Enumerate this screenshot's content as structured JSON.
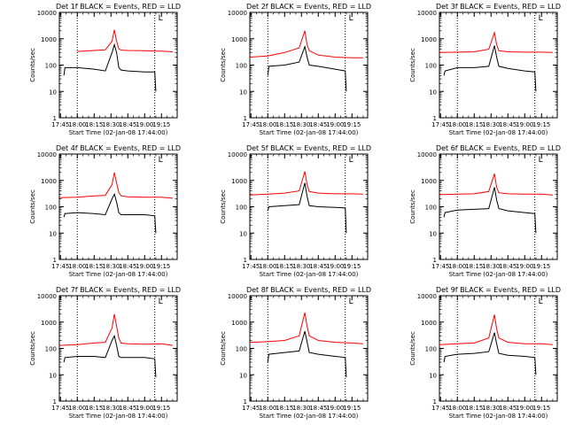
{
  "chart_data": [
    {
      "type": "line",
      "title": "Det 1f BLACK = Events, RED = LLD",
      "xlabel": "Start Time (02-Jan-08 17:44:00)",
      "ylabel": "Counts/sec",
      "yscale": "log",
      "ylim": [
        1,
        10000
      ],
      "y_ticks": [
        "1",
        "10",
        "100",
        "1000",
        "10000"
      ],
      "xlim": [
        "17:44",
        "19:29"
      ],
      "x_ticks": [
        "17:45",
        "18:00",
        "18:15",
        "18:30",
        "18:45",
        "19:00",
        "19:15"
      ],
      "vlines": [
        "18:00",
        "19:09"
      ],
      "marker": "L",
      "series": [
        {
          "name": "LLD",
          "color": "#ff0000",
          "x": [
            "18:00",
            "18:15",
            "18:25",
            "18:31",
            "18:33",
            "18:35",
            "18:37",
            "18:39",
            "18:45",
            "19:00",
            "19:09",
            "19:15",
            "19:25"
          ],
          "y": [
            330,
            360,
            380,
            800,
            2200,
            800,
            420,
            370,
            360,
            350,
            340,
            340,
            320
          ]
        },
        {
          "name": "Events",
          "color": "#000000",
          "x": [
            "17:48",
            "17:49",
            "18:00",
            "18:15",
            "18:25",
            "18:31",
            "18:33",
            "18:35",
            "18:37",
            "18:39",
            "18:45",
            "19:00",
            "19:09",
            "19:10"
          ],
          "y": [
            40,
            80,
            80,
            70,
            60,
            300,
            600,
            300,
            80,
            65,
            60,
            55,
            55,
            10
          ]
        }
      ]
    },
    {
      "type": "line",
      "title": "Det 2f BLACK = Events, RED = LLD",
      "xlabel": "Start Time (02-Jan-08 17:44:00)",
      "ylabel": "Counts/sec",
      "yscale": "log",
      "ylim": [
        1,
        10000
      ],
      "y_ticks": [
        "1",
        "10",
        "100",
        "1000",
        "10000"
      ],
      "xlim": [
        "17:44",
        "19:29"
      ],
      "x_ticks": [
        "17:45",
        "18:00",
        "18:15",
        "18:30",
        "18:45",
        "19:00",
        "19:15"
      ],
      "vlines": [
        "18:00",
        "19:09"
      ],
      "marker": "L",
      "series": [
        {
          "name": "LLD",
          "color": "#ff0000",
          "x": [
            "17:44",
            "18:00",
            "18:15",
            "18:28",
            "18:33",
            "18:35",
            "18:37",
            "18:45",
            "19:00",
            "19:15",
            "19:25"
          ],
          "y": [
            200,
            220,
            300,
            450,
            2000,
            600,
            350,
            240,
            200,
            190,
            190
          ]
        },
        {
          "name": "Events",
          "color": "#000000",
          "x": [
            "18:00",
            "18:01",
            "18:15",
            "18:28",
            "18:33",
            "18:35",
            "18:37",
            "18:45",
            "19:00",
            "19:09",
            "19:10"
          ],
          "y": [
            40,
            90,
            100,
            130,
            500,
            200,
            100,
            90,
            70,
            60,
            10
          ]
        }
      ]
    },
    {
      "type": "line",
      "title": "Det 3f BLACK = Events, RED = LLD",
      "xlabel": "Start Time (02-Jan-08 17:44:00)",
      "ylabel": "Counts/sec",
      "yscale": "log",
      "ylim": [
        1,
        10000
      ],
      "y_ticks": [
        "1",
        "10",
        "100",
        "1000",
        "10000"
      ],
      "xlim": [
        "17:44",
        "19:29"
      ],
      "x_ticks": [
        "17:45",
        "18:00",
        "18:15",
        "18:30",
        "18:45",
        "19:00",
        "19:15"
      ],
      "vlines": [
        "18:00",
        "19:09"
      ],
      "marker": "L",
      "series": [
        {
          "name": "LLD",
          "color": "#ff0000",
          "x": [
            "17:44",
            "18:00",
            "18:15",
            "18:28",
            "18:33",
            "18:35",
            "18:37",
            "18:45",
            "19:00",
            "19:15",
            "19:25"
          ],
          "y": [
            300,
            310,
            320,
            400,
            1700,
            600,
            350,
            320,
            310,
            310,
            300
          ]
        },
        {
          "name": "Events",
          "color": "#000000",
          "x": [
            "17:48",
            "17:49",
            "18:00",
            "18:15",
            "18:28",
            "18:33",
            "18:35",
            "18:37",
            "18:45",
            "19:00",
            "19:09",
            "19:10"
          ],
          "y": [
            40,
            60,
            80,
            80,
            90,
            550,
            200,
            90,
            75,
            60,
            55,
            10
          ]
        }
      ]
    },
    {
      "type": "line",
      "title": "Det 4f BLACK = Events, RED = LLD",
      "xlabel": "Start Time (02-Jan-08 17:44:00)",
      "ylabel": "Counts/sec",
      "yscale": "log",
      "ylim": [
        1,
        10000
      ],
      "y_ticks": [
        "1",
        "10",
        "100",
        "1000",
        "10000"
      ],
      "xlim": [
        "17:44",
        "19:29"
      ],
      "x_ticks": [
        "17:45",
        "18:00",
        "18:15",
        "18:30",
        "18:45",
        "19:00",
        "19:15"
      ],
      "vlines": [
        "18:00",
        "19:09"
      ],
      "marker": "L",
      "series": [
        {
          "name": "LLD",
          "color": "#ff0000",
          "x": [
            "17:44",
            "18:00",
            "18:15",
            "18:25",
            "18:31",
            "18:33",
            "18:35",
            "18:37",
            "18:39",
            "18:45",
            "19:00",
            "19:15",
            "19:25"
          ],
          "y": [
            220,
            230,
            260,
            270,
            700,
            2000,
            800,
            350,
            260,
            240,
            230,
            230,
            210
          ]
        },
        {
          "name": "Events",
          "color": "#000000",
          "x": [
            "17:48",
            "17:49",
            "18:00",
            "18:15",
            "18:25",
            "18:31",
            "18:33",
            "18:35",
            "18:37",
            "18:39",
            "18:45",
            "19:00",
            "19:09",
            "19:10"
          ],
          "y": [
            40,
            55,
            60,
            55,
            50,
            200,
            300,
            150,
            60,
            50,
            50,
            50,
            45,
            10
          ]
        }
      ]
    },
    {
      "type": "line",
      "title": "Det 5f BLACK = Events, RED = LLD",
      "xlabel": "Start Time (02-Jan-08 17:44:00)",
      "ylabel": "Counts/sec",
      "yscale": "log",
      "ylim": [
        1,
        10000
      ],
      "y_ticks": [
        "1",
        "10",
        "100",
        "1000",
        "10000"
      ],
      "xlim": [
        "17:44",
        "19:29"
      ],
      "x_ticks": [
        "17:45",
        "18:00",
        "18:15",
        "18:30",
        "18:45",
        "19:00",
        "19:15"
      ],
      "vlines": [
        "18:00",
        "19:09"
      ],
      "marker": "L",
      "series": [
        {
          "name": "LLD",
          "color": "#ff0000",
          "x": [
            "17:44",
            "18:00",
            "18:15",
            "18:28",
            "18:33",
            "18:35",
            "18:37",
            "18:45",
            "19:00",
            "19:15",
            "19:25"
          ],
          "y": [
            280,
            300,
            330,
            400,
            2200,
            700,
            380,
            330,
            310,
            310,
            300
          ]
        },
        {
          "name": "Events",
          "color": "#000000",
          "x": [
            "18:00",
            "18:01",
            "18:15",
            "18:28",
            "18:33",
            "18:35",
            "18:37",
            "18:45",
            "19:00",
            "19:09",
            "19:10"
          ],
          "y": [
            70,
            100,
            110,
            120,
            800,
            250,
            110,
            100,
            95,
            90,
            10
          ]
        }
      ]
    },
    {
      "type": "line",
      "title": "Det 6f BLACK = Events, RED = LLD",
      "xlabel": "Start Time (02-Jan-08 17:44:00)",
      "ylabel": "Counts/sec",
      "yscale": "log",
      "ylim": [
        1,
        10000
      ],
      "y_ticks": [
        "1",
        "10",
        "100",
        "1000",
        "10000"
      ],
      "xlim": [
        "17:44",
        "19:29"
      ],
      "x_ticks": [
        "17:45",
        "18:00",
        "18:15",
        "18:30",
        "18:45",
        "19:00",
        "19:15"
      ],
      "vlines": [
        "18:00",
        "19:09"
      ],
      "marker": "L",
      "series": [
        {
          "name": "LLD",
          "color": "#ff0000",
          "x": [
            "17:44",
            "18:00",
            "18:15",
            "18:28",
            "18:33",
            "18:35",
            "18:37",
            "18:45",
            "19:00",
            "19:15",
            "19:25"
          ],
          "y": [
            290,
            300,
            310,
            380,
            1800,
            550,
            340,
            310,
            300,
            300,
            280
          ]
        },
        {
          "name": "Events",
          "color": "#000000",
          "x": [
            "17:48",
            "17:49",
            "18:00",
            "18:15",
            "18:28",
            "18:33",
            "18:35",
            "18:37",
            "18:45",
            "19:00",
            "19:09",
            "19:10"
          ],
          "y": [
            40,
            60,
            75,
            80,
            85,
            550,
            180,
            85,
            70,
            60,
            55,
            10
          ]
        }
      ]
    },
    {
      "type": "line",
      "title": "Det 7f BLACK = Events, RED = LLD",
      "xlabel": "Start Time (02-Jan-08 17:44:00)",
      "ylabel": "Counts/sec",
      "yscale": "log",
      "ylim": [
        1,
        10000
      ],
      "y_ticks": [
        "1",
        "10",
        "100",
        "1000",
        "10000"
      ],
      "xlim": [
        "17:44",
        "19:29"
      ],
      "x_ticks": [
        "17:45",
        "18:00",
        "18:15",
        "18:30",
        "18:45",
        "19:00",
        "19:15"
      ],
      "vlines": [
        "18:00",
        "19:09"
      ],
      "marker": "L",
      "series": [
        {
          "name": "LLD",
          "color": "#ff0000",
          "x": [
            "17:44",
            "18:00",
            "18:15",
            "18:25",
            "18:31",
            "18:33",
            "18:35",
            "18:37",
            "18:39",
            "18:45",
            "19:00",
            "19:15",
            "19:25"
          ],
          "y": [
            130,
            140,
            160,
            170,
            600,
            2000,
            700,
            250,
            160,
            150,
            145,
            150,
            130
          ]
        },
        {
          "name": "Events",
          "color": "#000000",
          "x": [
            "17:48",
            "17:49",
            "18:00",
            "18:15",
            "18:25",
            "18:31",
            "18:33",
            "18:35",
            "18:37",
            "18:39",
            "18:45",
            "19:00",
            "19:09",
            "19:10"
          ],
          "y": [
            30,
            45,
            50,
            50,
            45,
            200,
            300,
            130,
            50,
            45,
            45,
            45,
            40,
            8
          ]
        }
      ]
    },
    {
      "type": "line",
      "title": "Det 8f BLACK = Events, RED = LLD",
      "xlabel": "Start Time (02-Jan-08 17:44:00)",
      "ylabel": "Counts/sec",
      "yscale": "log",
      "ylim": [
        1,
        10000
      ],
      "y_ticks": [
        "1",
        "10",
        "100",
        "1000",
        "10000"
      ],
      "xlim": [
        "17:44",
        "19:29"
      ],
      "x_ticks": [
        "17:45",
        "18:00",
        "18:15",
        "18:30",
        "18:45",
        "19:00",
        "19:15"
      ],
      "vlines": [
        "18:00",
        "19:09"
      ],
      "marker": "L",
      "series": [
        {
          "name": "LLD",
          "color": "#ff0000",
          "x": [
            "17:44",
            "18:00",
            "18:15",
            "18:28",
            "18:33",
            "18:35",
            "18:37",
            "18:45",
            "19:00",
            "19:15",
            "19:25"
          ],
          "y": [
            170,
            180,
            200,
            300,
            2300,
            700,
            300,
            200,
            170,
            160,
            150
          ]
        },
        {
          "name": "Events",
          "color": "#000000",
          "x": [
            "18:00",
            "18:01",
            "18:15",
            "18:28",
            "18:33",
            "18:35",
            "18:37",
            "18:45",
            "19:00",
            "19:09",
            "19:10"
          ],
          "y": [
            30,
            60,
            70,
            80,
            450,
            180,
            70,
            60,
            50,
            45,
            8
          ]
        }
      ]
    },
    {
      "type": "line",
      "title": "Det 9f BLACK = Events, RED = LLD",
      "xlabel": "Start Time (02-Jan-08 17:44:00)",
      "ylabel": "Counts/sec",
      "yscale": "log",
      "ylim": [
        1,
        10000
      ],
      "y_ticks": [
        "1",
        "10",
        "100",
        "1000",
        "10000"
      ],
      "xlim": [
        "17:44",
        "19:29"
      ],
      "x_ticks": [
        "17:45",
        "18:00",
        "18:15",
        "18:30",
        "18:45",
        "19:00",
        "19:15"
      ],
      "vlines": [
        "18:00",
        "19:09"
      ],
      "marker": "L",
      "series": [
        {
          "name": "LLD",
          "color": "#ff0000",
          "x": [
            "17:44",
            "18:00",
            "18:15",
            "18:28",
            "18:33",
            "18:35",
            "18:37",
            "18:45",
            "19:00",
            "19:15",
            "19:25"
          ],
          "y": [
            140,
            150,
            160,
            250,
            1900,
            550,
            250,
            170,
            150,
            150,
            140
          ]
        },
        {
          "name": "Events",
          "color": "#000000",
          "x": [
            "17:48",
            "17:49",
            "18:00",
            "18:15",
            "18:28",
            "18:33",
            "18:35",
            "18:37",
            "18:45",
            "19:00",
            "19:09",
            "19:10"
          ],
          "y": [
            30,
            50,
            60,
            65,
            75,
            400,
            150,
            65,
            55,
            50,
            45,
            10
          ]
        }
      ]
    }
  ]
}
